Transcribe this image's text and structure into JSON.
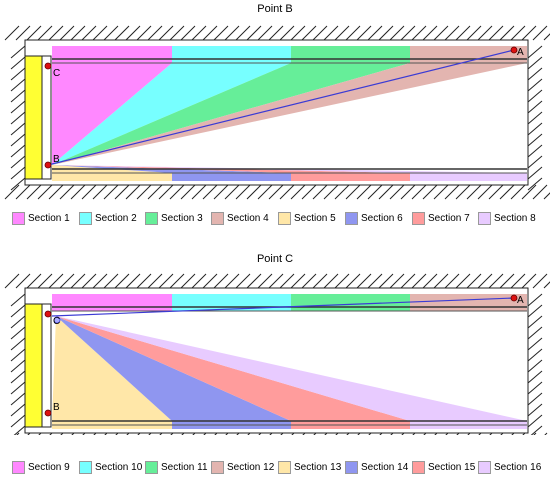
{
  "panels": [
    {
      "title": "Point B",
      "sections": [
        {
          "label": "Section 1",
          "color": "#ff88ff"
        },
        {
          "label": "Section 2",
          "color": "#77ffff"
        },
        {
          "label": "Section 3",
          "color": "#66ee99"
        },
        {
          "label": "Section 4",
          "color": "#e3b5b0"
        },
        {
          "label": "Section 5",
          "color": "#ffe7a8"
        },
        {
          "label": "Section 6",
          "color": "#8f96f0"
        },
        {
          "label": "Section 7",
          "color": "#ff9c9c"
        },
        {
          "label": "Section 8",
          "color": "#e8cbff"
        }
      ],
      "points": [
        "A",
        "C",
        "B"
      ]
    },
    {
      "title": "Point C",
      "sections": [
        {
          "label": "Section 9",
          "color": "#ff88ff"
        },
        {
          "label": "Section 10",
          "color": "#77ffff"
        },
        {
          "label": "Section 11",
          "color": "#66ee99"
        },
        {
          "label": "Section 12",
          "color": "#e3b5b0"
        },
        {
          "label": "Section 13",
          "color": "#ffe7a8"
        },
        {
          "label": "Section 14",
          "color": "#8f96f0"
        },
        {
          "label": "Section 15",
          "color": "#ff9c9c"
        },
        {
          "label": "Section 16",
          "color": "#e8cbff"
        }
      ],
      "points": [
        "A",
        "C",
        "B"
      ]
    }
  ],
  "colors": {
    "wall": "#ffff33",
    "line": "#3b3bd4",
    "point": "#dd1111"
  }
}
